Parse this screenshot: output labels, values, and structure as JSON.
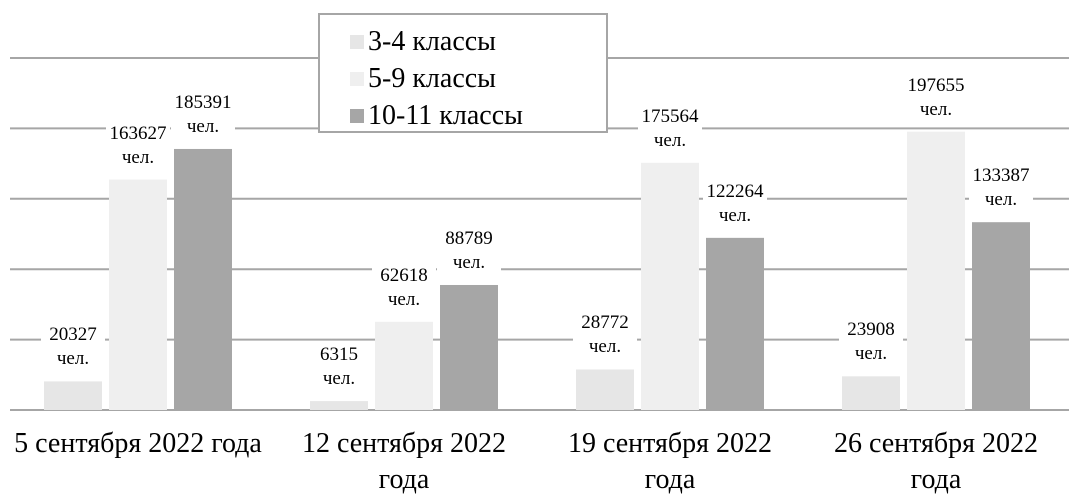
{
  "chart_data": {
    "type": "bar",
    "categories": [
      "5 сентября 2022 года",
      "12 сентября 2022 года",
      "19 сентября 2022 года",
      "26 сентября 2022 года"
    ],
    "series": [
      {
        "name": "3-4 классы",
        "color": "#e6e6e6",
        "values": [
          20327,
          6315,
          28772,
          23908
        ],
        "value_labels": [
          "20327 чел.",
          "6315 чел.",
          "28772 чел.",
          "23908 чел."
        ]
      },
      {
        "name": "5-9 классы",
        "color": "#efefef",
        "values": [
          163627,
          62618,
          175564,
          197655
        ],
        "value_labels": [
          "163627 чел.",
          "62618 чел.",
          "175564 чел.",
          "197655 чел."
        ]
      },
      {
        "name": "10-11 классы",
        "color": "#a6a6a6",
        "values": [
          185391,
          88789,
          122264,
          133387
        ],
        "value_labels": [
          "185391 чел.",
          "88789 чел.",
          "122264 чел.",
          "133387 чел."
        ]
      }
    ],
    "ylim": [
      0,
      250000
    ],
    "yticks": [
      0,
      50000,
      100000,
      150000,
      200000,
      250000
    ],
    "grid": true
  }
}
